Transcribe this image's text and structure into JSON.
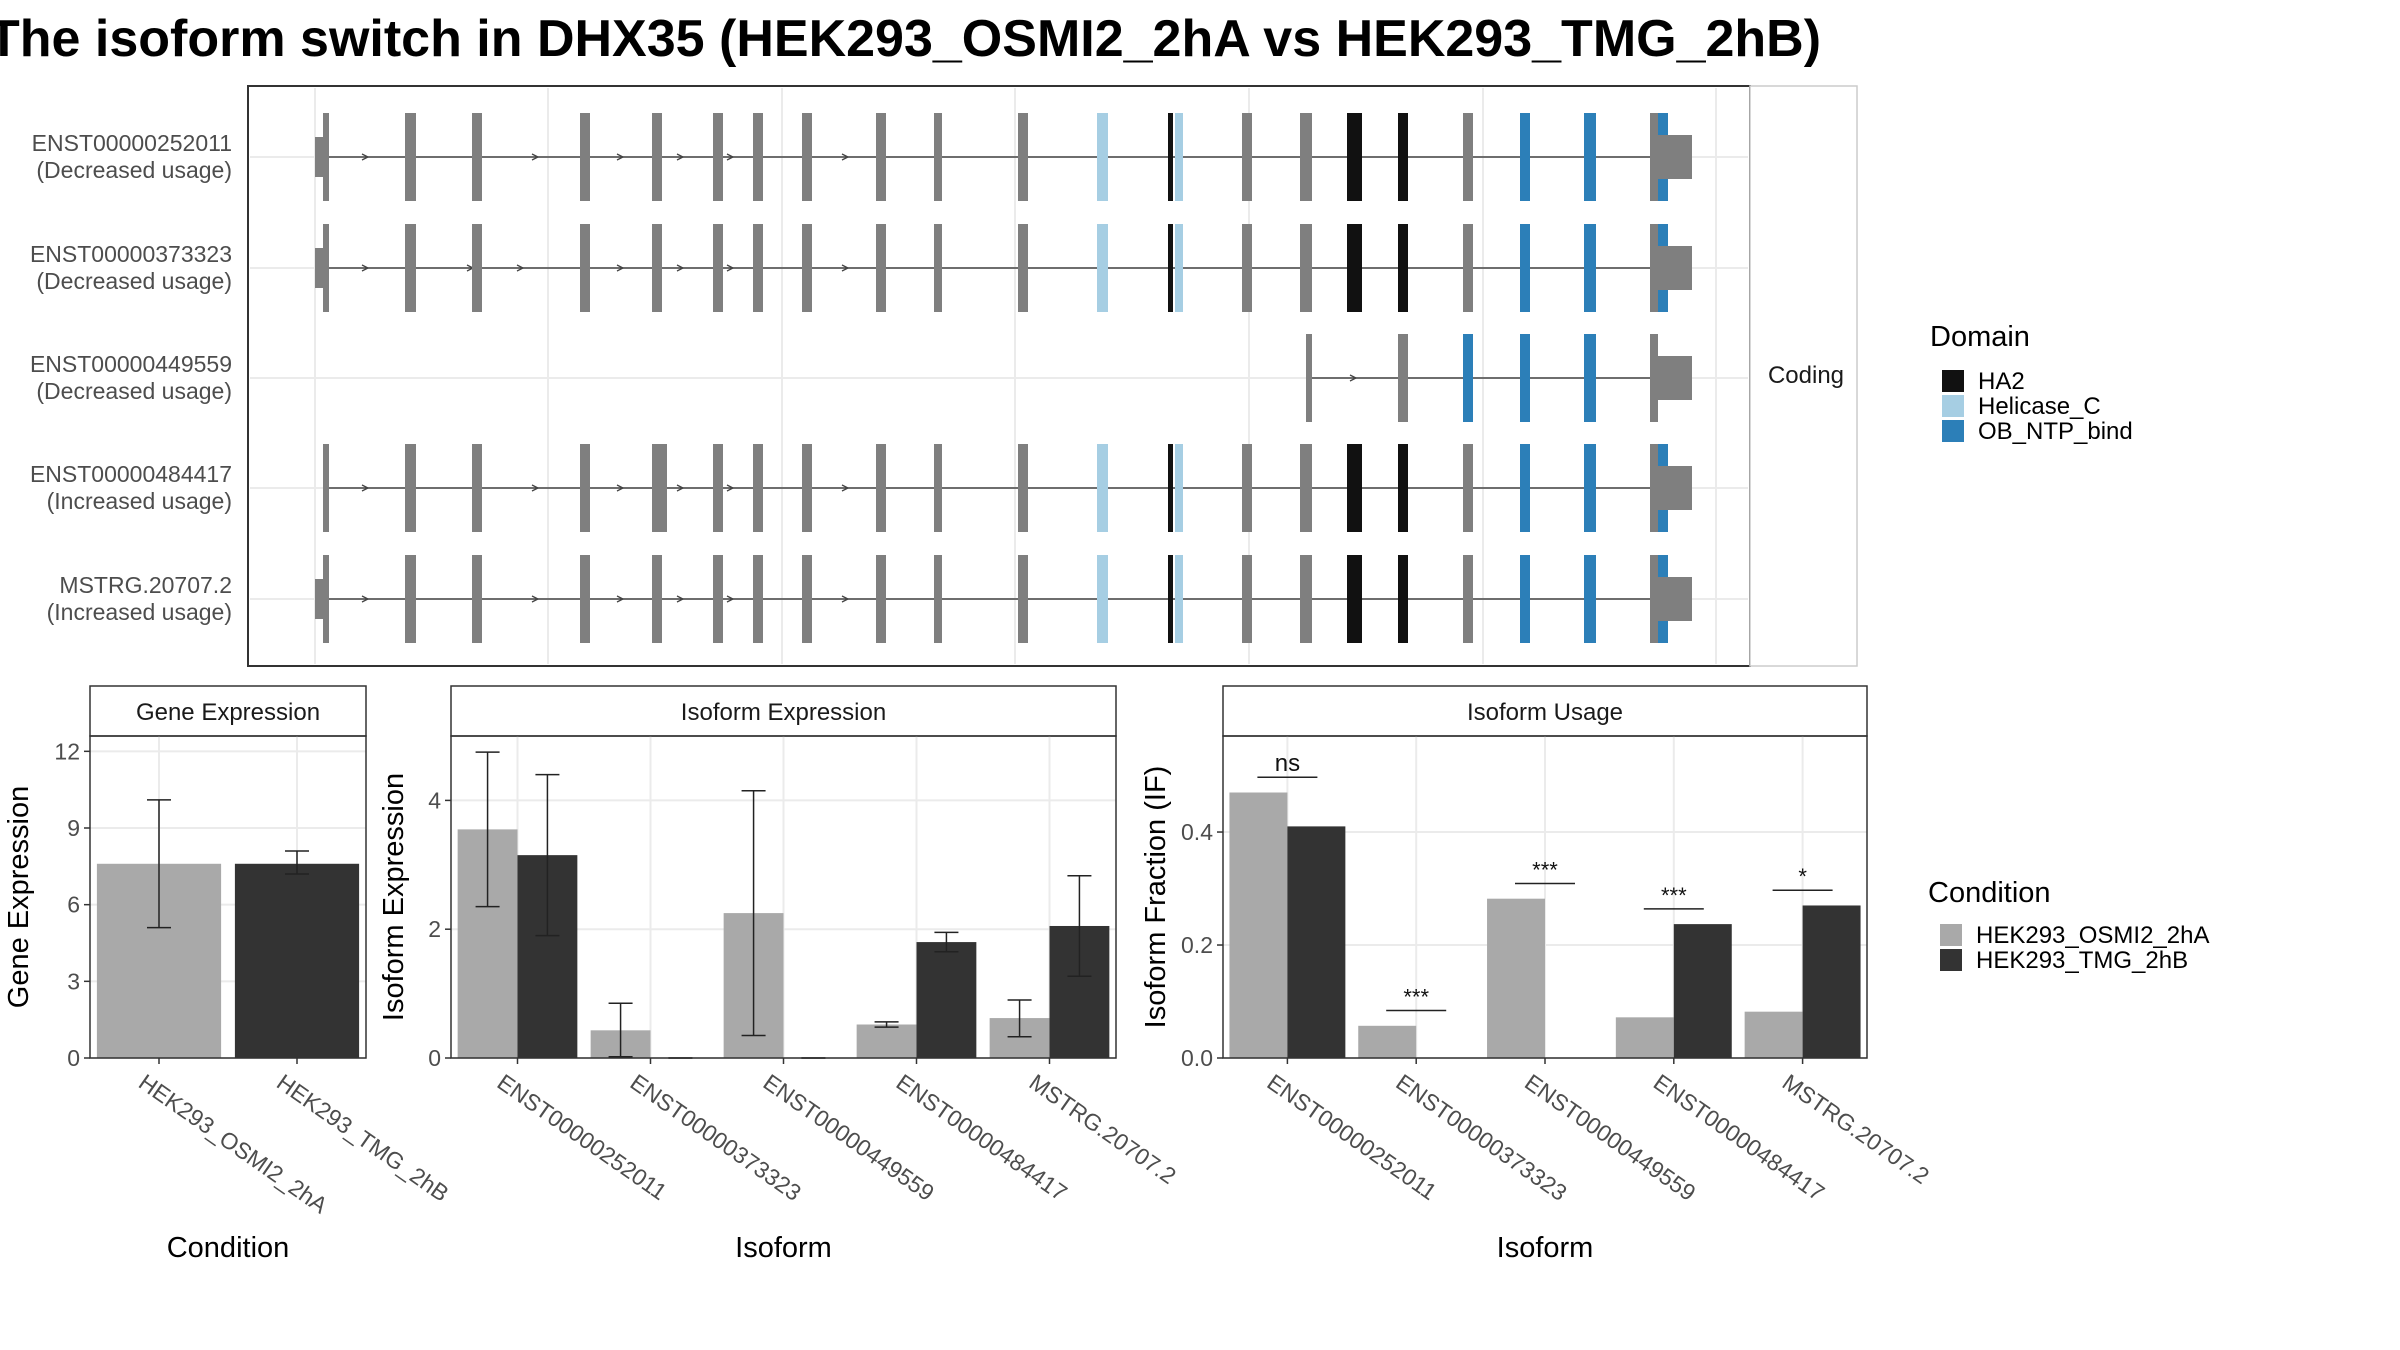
{
  "title": "The isoform switch in DHX35 (HEK293_OSMI2_2hA vs HEK293_TMG_2hB)",
  "strip_right": "Coding",
  "colors": {
    "noncoding_exon": "#7f7f7f",
    "cond_a": "#a9a9a9",
    "cond_b": "#333333",
    "HA2": "#111111",
    "Helicase_C": "#a6cee3",
    "OB_NTP_bind": "#2c7fb8",
    "panel_border": "#333333",
    "grid": "#ebebeb"
  },
  "transcripts": [
    {
      "id": "ENST00000252011",
      "label_line2": "(Decreased usage)"
    },
    {
      "id": "ENST00000373323",
      "label_line2": "(Decreased usage)"
    },
    {
      "id": "ENST00000449559",
      "label_line2": "(Decreased usage)"
    },
    {
      "id": "ENST00000484417",
      "label_line2": "(Increased usage)"
    },
    {
      "id": "MSTRG.20707.2",
      "label_line2": "(Increased usage)"
    }
  ],
  "domain_legend": {
    "title": "Domain",
    "items": [
      {
        "name": "HA2",
        "color": "#111111"
      },
      {
        "name": "Helicase_C",
        "color": "#a6cee3"
      },
      {
        "name": "OB_NTP_bind",
        "color": "#2c7fb8"
      }
    ]
  },
  "condition_legend": {
    "title": "Condition",
    "items": [
      {
        "name": "HEK293_OSMI2_2hA",
        "color": "#a9a9a9"
      },
      {
        "name": "HEK293_TMG_2hB",
        "color": "#333333"
      }
    ]
  },
  "chart_data": [
    {
      "type": "bar",
      "strip": "Gene Expression",
      "xlabel": "Condition",
      "ylabel": "Gene Expression",
      "categories": [
        "HEK293_OSMI2_2hA",
        "HEK293_TMG_2hB"
      ],
      "values": [
        7.6,
        7.6
      ],
      "errors": [
        [
          5.1,
          10.1
        ],
        [
          7.2,
          8.1
        ]
      ],
      "yticks": [
        0,
        3,
        6,
        9,
        12
      ],
      "ylim": [
        0,
        12.6
      ]
    },
    {
      "type": "bar",
      "strip": "Isoform Expression",
      "xlabel": "Isoform",
      "ylabel": "Isoform Expression",
      "categories": [
        "ENST00000252011",
        "ENST00000373323",
        "ENST00000449559",
        "ENST00000484417",
        "MSTRG.20707.2"
      ],
      "series": [
        {
          "name": "HEK293_OSMI2_2hA",
          "values": [
            3.55,
            0.43,
            2.25,
            0.52,
            0.62
          ],
          "errors": [
            [
              2.35,
              4.75
            ],
            [
              0.02,
              0.85
            ],
            [
              0.35,
              4.15
            ],
            [
              0.48,
              0.56
            ],
            [
              0.33,
              0.9
            ]
          ]
        },
        {
          "name": "HEK293_TMG_2hB",
          "values": [
            3.15,
            0.0,
            0.0,
            1.8,
            2.05
          ],
          "errors": [
            [
              1.9,
              4.4
            ],
            [
              0.0,
              0.0
            ],
            [
              0.0,
              0.0
            ],
            [
              1.65,
              1.95
            ],
            [
              1.27,
              2.83
            ]
          ]
        }
      ],
      "yticks": [
        0,
        2,
        4
      ],
      "ylim": [
        0,
        5.0
      ]
    },
    {
      "type": "bar",
      "strip": "Isoform Usage",
      "xlabel": "Isoform",
      "ylabel": "Isoform Fraction (IF)",
      "categories": [
        "ENST00000252011",
        "ENST00000373323",
        "ENST00000449559",
        "ENST00000484417",
        "MSTRG.20707.2"
      ],
      "series": [
        {
          "name": "HEK293_OSMI2_2hA",
          "values": [
            0.47,
            0.057,
            0.282,
            0.072,
            0.082
          ]
        },
        {
          "name": "HEK293_TMG_2hB",
          "values": [
            0.41,
            0.0,
            0.0,
            0.237,
            0.27
          ]
        }
      ],
      "significance": [
        "ns",
        "***",
        "***",
        "***",
        "*"
      ],
      "sig_y": [
        0.497,
        0.084,
        0.309,
        0.264,
        0.297
      ],
      "yticks": [
        0.0,
        0.2,
        0.4
      ],
      "ylim": [
        0,
        0.57
      ]
    }
  ]
}
